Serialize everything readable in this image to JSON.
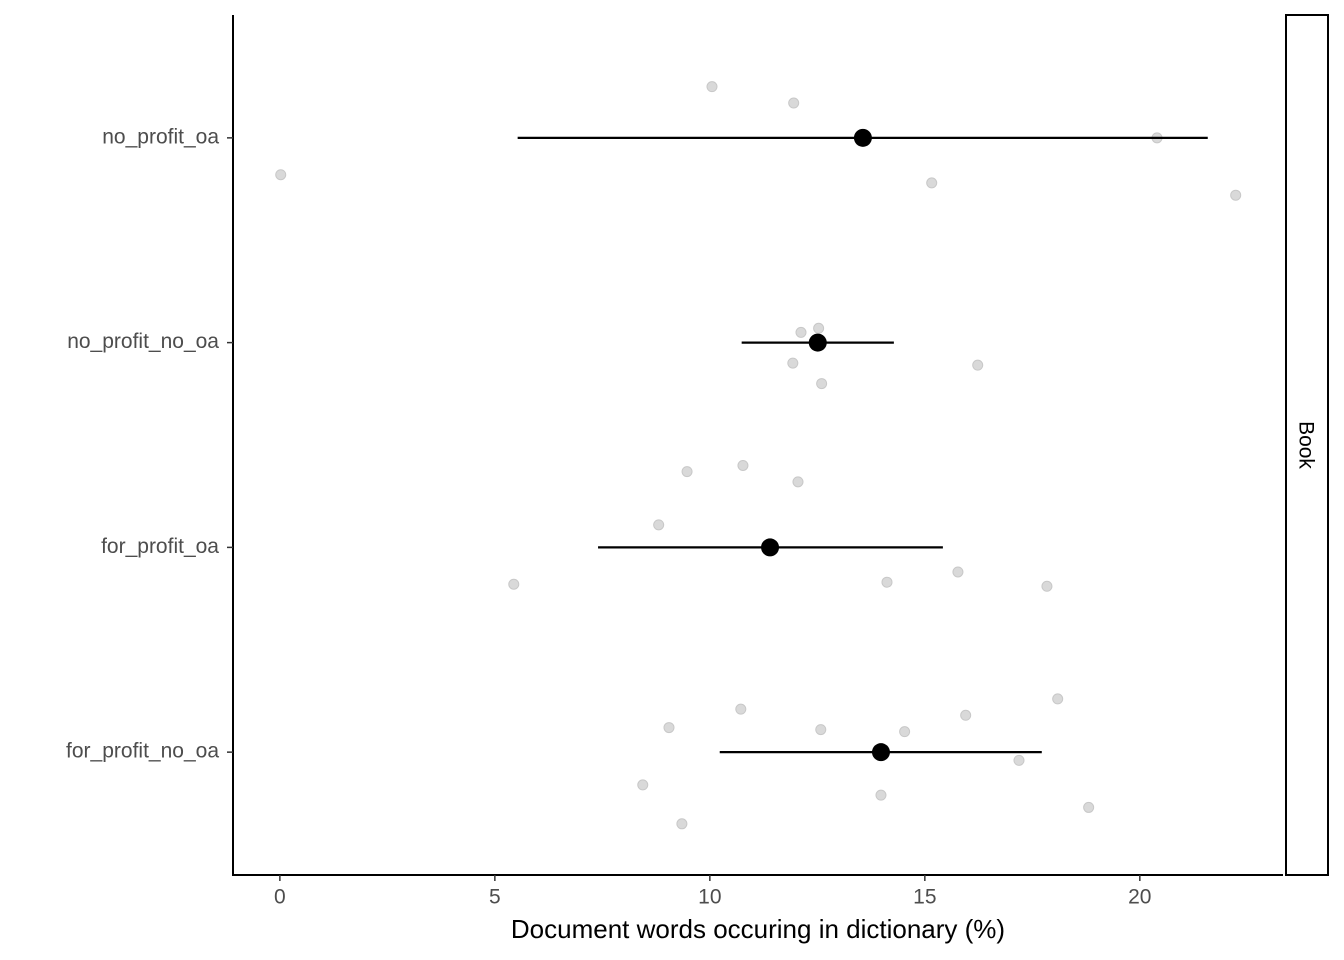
{
  "chart_data": {
    "type": "scatter",
    "xlabel": "Document words occuring in dictionary (%)",
    "facet_label": "Book",
    "xlim": [
      -1.09,
      23.33
    ],
    "xticks": [
      0,
      5,
      10,
      15,
      20
    ],
    "ylim": [
      0.4,
      4.6
    ],
    "yticks": [
      {
        "value": 1,
        "label": "for_profit_no_oa"
      },
      {
        "value": 2,
        "label": "for_profit_oa"
      },
      {
        "value": 3,
        "label": "no_profit_no_oa"
      },
      {
        "value": 4,
        "label": "no_profit_oa"
      }
    ],
    "points": {
      "color": "#d9d9d9",
      "x": [
        10.05,
        11.95,
        20.4,
        0.02,
        15.16,
        22.23,
        12.53,
        12.12,
        11.93,
        16.23,
        12.6,
        9.47,
        10.77,
        12.05,
        8.81,
        5.44,
        14.12,
        15.77,
        17.84,
        18.09,
        10.72,
        15.95,
        9.05,
        12.58,
        14.53,
        17.19,
        8.44,
        13.98,
        18.81,
        9.35
      ],
      "y": [
        4.25,
        4.17,
        4.0,
        3.82,
        3.78,
        3.72,
        3.07,
        3.05,
        2.9,
        2.89,
        2.8,
        2.37,
        2.4,
        2.32,
        2.11,
        1.82,
        1.83,
        1.88,
        1.81,
        1.26,
        1.21,
        1.18,
        1.12,
        1.11,
        1.1,
        0.96,
        0.84,
        0.79,
        0.73,
        0.65
      ]
    },
    "summary": {
      "color": "#000000",
      "y": [
        4,
        3,
        2,
        1
      ],
      "mean": [
        13.56,
        12.51,
        11.4,
        13.98
      ],
      "low": [
        5.53,
        10.74,
        7.4,
        10.23
      ],
      "high": [
        21.58,
        14.28,
        15.42,
        17.72
      ]
    }
  }
}
